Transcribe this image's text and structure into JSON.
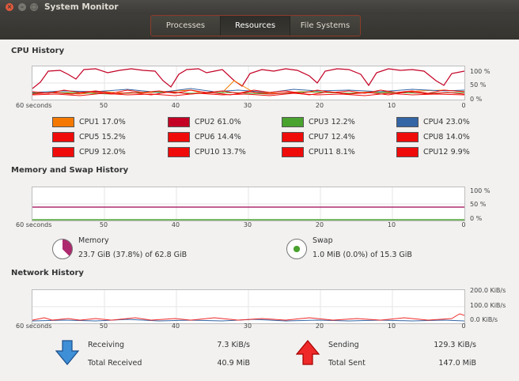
{
  "window": {
    "title": "System Monitor"
  },
  "tabs": [
    {
      "label": "Processes",
      "active": false
    },
    {
      "label": "Resources",
      "active": true
    },
    {
      "label": "File Systems",
      "active": false
    }
  ],
  "cpu": {
    "section_title": "CPU History",
    "y_labels": [
      "100 %",
      "50 %",
      "0 %"
    ],
    "x_first": "60 seconds",
    "x_ticks": [
      "50",
      "40",
      "30",
      "20",
      "10",
      "0"
    ],
    "legend": [
      {
        "label": "CPU1",
        "value": "17.0%",
        "color": "#f57900"
      },
      {
        "label": "CPU2",
        "value": "61.0%",
        "color": "#c30024"
      },
      {
        "label": "CPU3",
        "value": "12.2%",
        "color": "#4aa22f"
      },
      {
        "label": "CPU4",
        "value": "23.0%",
        "color": "#3465a4"
      },
      {
        "label": "CPU5",
        "value": "15.2%",
        "color": "#f00b0b"
      },
      {
        "label": "CPU6",
        "value": "14.4%",
        "color": "#f00b0b"
      },
      {
        "label": "CPU7",
        "value": "12.4%",
        "color": "#f00b0b"
      },
      {
        "label": "CPU8",
        "value": "14.0%",
        "color": "#f00b0b"
      },
      {
        "label": "CPU9",
        "value": "12.0%",
        "color": "#f00b0b"
      },
      {
        "label": "CPU10",
        "value": "13.7%",
        "color": "#f00b0b"
      },
      {
        "label": "CPU11",
        "value": "8.1%",
        "color": "#f00b0b"
      },
      {
        "label": "CPU12",
        "value": "9.9%",
        "color": "#f00b0b"
      }
    ]
  },
  "memory": {
    "section_title": "Memory and Swap History",
    "y_labels": [
      "100 %",
      "50 %",
      "0 %"
    ],
    "x_first": "60 seconds",
    "x_ticks": [
      "50",
      "40",
      "30",
      "20",
      "10",
      "0"
    ],
    "mem_label": "Memory",
    "mem_value": "23.7 GiB (37.8%) of 62.8 GiB",
    "mem_fraction": 0.378,
    "mem_color": "#ad2a6f",
    "swap_label": "Swap",
    "swap_value": "1.0 MiB (0.0%) of 15.3 GiB",
    "swap_fraction": 0.0,
    "swap_color": "#4aa22f"
  },
  "network": {
    "section_title": "Network History",
    "y_labels": [
      "200.0 KiB/s",
      "100.0 KiB/s",
      "0.0 KiB/s"
    ],
    "x_first": "60 seconds",
    "x_ticks": [
      "50",
      "40",
      "30",
      "20",
      "10",
      "0"
    ],
    "receiving_label": "Receiving",
    "receiving_value": "7.3 KiB/s",
    "total_received_label": "Total Received",
    "total_received_value": "40.9 MiB",
    "sending_label": "Sending",
    "sending_value": "129.3 KiB/s",
    "total_sent_label": "Total Sent",
    "total_sent_value": "147.0 MiB",
    "receiving_color": "#3465a4",
    "sending_color": "#ef2929"
  }
}
